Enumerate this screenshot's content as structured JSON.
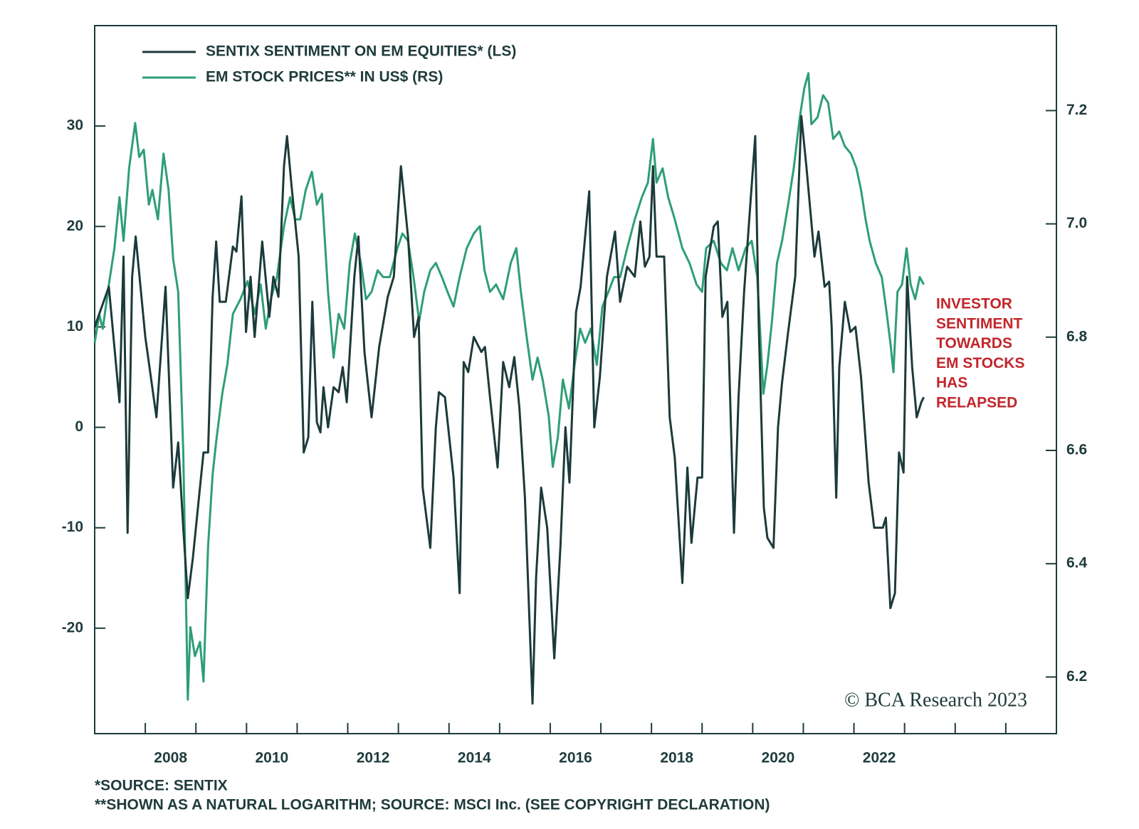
{
  "chart_data": {
    "type": "line",
    "legend": "top-left",
    "xlim": [
      2007,
      2026
    ],
    "xticks": [
      2008,
      2010,
      2012,
      2014,
      2016,
      2018,
      2020,
      2022
    ],
    "xminorticks": [
      2009,
      2011,
      2013,
      2015,
      2017,
      2019,
      2021,
      2023,
      2024,
      2025
    ],
    "ylim": [
      -30.5,
      40
    ],
    "yticks": [
      30,
      20,
      10,
      0,
      -10,
      -20
    ],
    "y2lim": [
      6.1,
      7.35
    ],
    "y2ticks": [
      7.2,
      {
        "value": 7,
        "label": "7.0"
      },
      6.8,
      6.6,
      6.4,
      6.2
    ],
    "series": [
      {
        "name": "SENTIX SENTIMENT ON EM EQUITIES* (LS)",
        "color": "#1c3a3a",
        "x": [
          2007.0,
          2007.28,
          2007.49,
          2007.57,
          2007.65,
          2007.74,
          2007.81,
          2008.0,
          2008.22,
          2008.4,
          2008.55,
          2008.65,
          2008.75,
          2008.84,
          2008.94,
          2009.15,
          2009.24,
          2009.33,
          2009.4,
          2009.47,
          2009.59,
          2009.73,
          2009.8,
          2009.9,
          2009.99,
          2010.08,
          2010.16,
          2010.31,
          2010.45,
          2010.53,
          2010.63,
          2010.74,
          2010.8,
          2010.89,
          2011.03,
          2011.13,
          2011.22,
          2011.3,
          2011.39,
          2011.46,
          2011.52,
          2011.61,
          2011.72,
          2011.82,
          2011.9,
          2011.98,
          2012.13,
          2012.21,
          2012.33,
          2012.47,
          2012.62,
          2012.79,
          2012.91,
          2013.05,
          2013.19,
          2013.31,
          2013.4,
          2013.48,
          2013.63,
          2013.74,
          2013.8,
          2013.92,
          2014.09,
          2014.21,
          2014.29,
          2014.38,
          2014.49,
          2014.64,
          2014.71,
          2014.81,
          2014.96,
          2015.07,
          2015.19,
          2015.29,
          2015.39,
          2015.5,
          2015.65,
          2015.72,
          2015.82,
          2015.94,
          2016.08,
          2016.2,
          2016.3,
          2016.38,
          2016.51,
          2016.6,
          2016.77,
          2016.87,
          2016.98,
          2017.12,
          2017.28,
          2017.38,
          2017.52,
          2017.67,
          2017.78,
          2017.87,
          2017.96,
          2018.03,
          2018.1,
          2018.25,
          2018.36,
          2018.46,
          2018.61,
          2018.71,
          2018.79,
          2018.91,
          2019.0,
          2019.07,
          2019.23,
          2019.31,
          2019.4,
          2019.5,
          2019.63,
          2019.72,
          2019.83,
          2019.95,
          2020.05,
          2020.12,
          2020.22,
          2020.29,
          2020.41,
          2020.5,
          2020.58,
          2020.7,
          2020.84,
          2020.96,
          2021.06,
          2021.22,
          2021.3,
          2021.42,
          2021.51,
          2021.56,
          2021.65,
          2021.71,
          2021.82,
          2021.93,
          2022.03,
          2022.14,
          2022.29,
          2022.4,
          2022.57,
          2022.63,
          2022.72,
          2022.81,
          2022.89,
          2022.98,
          2023.05,
          2023.15,
          2023.24,
          2023.33,
          2023.38
        ],
        "values": [
          10,
          14,
          2.5,
          17,
          -10.5,
          15,
          19,
          9,
          1,
          14,
          -6,
          -1.5,
          -10,
          -17,
          -13,
          -2.5,
          -2.5,
          13,
          18.5,
          12.5,
          12.5,
          18,
          17.5,
          23,
          9.5,
          15,
          9,
          18.5,
          11,
          15,
          13,
          26,
          29,
          24,
          17,
          -2.5,
          -1,
          12.5,
          0.5,
          -0.5,
          4,
          0,
          4,
          3.5,
          6,
          2.5,
          15,
          19,
          7.5,
          1,
          8,
          13,
          15,
          26,
          19,
          9,
          11,
          -6,
          -12,
          0,
          3.5,
          3,
          -5,
          -16.5,
          6.5,
          5.5,
          9,
          7.5,
          8,
          3,
          -4,
          6.5,
          4,
          7,
          2,
          -7,
          -27.5,
          -15,
          -6,
          -10,
          -23,
          -12,
          0,
          -5.5,
          11.5,
          14,
          23.5,
          0,
          5,
          15,
          19.5,
          12.5,
          16,
          15,
          20.5,
          16,
          17,
          26,
          17,
          17,
          1,
          -3,
          -15.5,
          -4,
          -11.5,
          -5,
          -5,
          15,
          20,
          20.5,
          11,
          12.5,
          -10.5,
          3,
          13.5,
          22,
          29,
          10,
          -8,
          -11,
          -12,
          0,
          4.5,
          9.5,
          15,
          31,
          26,
          17,
          19.5,
          14,
          14.5,
          10,
          -7,
          6,
          12.5,
          9.5,
          10,
          5,
          -5.5,
          -10,
          -10,
          -9,
          -18,
          -16.5,
          -2.5,
          -4.5,
          15,
          6,
          1,
          2.5,
          3
        ]
      },
      {
        "name": "EM STOCK PRICES** IN US$ (RS)",
        "color": "#2e9e76",
        "axis": "y2",
        "x": [
          2007.0,
          2007.09,
          2007.16,
          2007.28,
          2007.39,
          2007.49,
          2007.57,
          2007.68,
          2007.8,
          2007.88,
          2007.97,
          2008.07,
          2008.14,
          2008.25,
          2008.36,
          2008.46,
          2008.55,
          2008.65,
          2008.75,
          2008.84,
          2008.89,
          2008.98,
          2009.08,
          2009.15,
          2009.24,
          2009.33,
          2009.41,
          2009.52,
          2009.62,
          2009.73,
          2009.88,
          2010.02,
          2010.16,
          2010.28,
          2010.38,
          2010.48,
          2010.6,
          2010.74,
          2010.86,
          2010.96,
          2011.06,
          2011.17,
          2011.29,
          2011.39,
          2011.49,
          2011.61,
          2011.72,
          2011.82,
          2011.93,
          2012.04,
          2012.14,
          2012.26,
          2012.36,
          2012.47,
          2012.59,
          2012.7,
          2012.83,
          2012.98,
          2013.08,
          2013.19,
          2013.3,
          2013.41,
          2013.51,
          2013.63,
          2013.74,
          2013.86,
          2013.97,
          2014.09,
          2014.21,
          2014.35,
          2014.49,
          2014.61,
          2014.7,
          2014.81,
          2014.93,
          2015.07,
          2015.22,
          2015.33,
          2015.42,
          2015.53,
          2015.65,
          2015.75,
          2015.85,
          2015.97,
          2016.05,
          2016.15,
          2016.25,
          2016.37,
          2016.48,
          2016.59,
          2016.69,
          2016.8,
          2016.92,
          2017.03,
          2017.15,
          2017.26,
          2017.38,
          2017.52,
          2017.67,
          2017.81,
          2017.93,
          2018.03,
          2018.1,
          2018.22,
          2018.33,
          2018.46,
          2018.61,
          2018.75,
          2018.89,
          2019.0,
          2019.08,
          2019.23,
          2019.37,
          2019.49,
          2019.6,
          2019.72,
          2019.86,
          2019.98,
          2020.09,
          2020.21,
          2020.29,
          2020.38,
          2020.48,
          2020.58,
          2020.7,
          2020.81,
          2020.93,
          2021.02,
          2021.1,
          2021.16,
          2021.28,
          2021.39,
          2021.49,
          2021.59,
          2021.71,
          2021.82,
          2021.94,
          2022.05,
          2022.14,
          2022.23,
          2022.31,
          2022.43,
          2022.55,
          2022.63,
          2022.72,
          2022.78,
          2022.86,
          2022.95,
          2023.04,
          2023.12,
          2023.21,
          2023.3,
          2023.38
        ],
        "values": [
          6.79,
          6.84,
          6.815,
          6.893,
          6.957,
          7.047,
          6.97,
          7.098,
          7.178,
          7.118,
          7.131,
          7.034,
          7.06,
          7.008,
          7.124,
          7.06,
          6.938,
          6.88,
          6.597,
          6.16,
          6.288,
          6.237,
          6.262,
          6.192,
          6.43,
          6.558,
          6.623,
          6.7,
          6.751,
          6.841,
          6.867,
          6.899,
          6.841,
          6.893,
          6.815,
          6.867,
          6.906,
          6.996,
          7.047,
          7.008,
          7.008,
          7.06,
          7.092,
          7.034,
          7.053,
          6.88,
          6.764,
          6.841,
          6.815,
          6.931,
          6.983,
          6.931,
          6.867,
          6.88,
          6.918,
          6.906,
          6.906,
          6.957,
          6.983,
          6.97,
          6.906,
          6.828,
          6.88,
          6.918,
          6.931,
          6.906,
          6.88,
          6.854,
          6.906,
          6.957,
          6.983,
          6.996,
          6.918,
          6.88,
          6.893,
          6.867,
          6.931,
          6.957,
          6.88,
          6.803,
          6.725,
          6.764,
          6.725,
          6.661,
          6.571,
          6.623,
          6.725,
          6.674,
          6.751,
          6.815,
          6.79,
          6.815,
          6.751,
          6.854,
          6.88,
          6.906,
          6.906,
          6.957,
          7.008,
          7.047,
          7.073,
          7.15,
          7.073,
          7.098,
          7.047,
          7.008,
          6.957,
          6.931,
          6.893,
          6.88,
          6.957,
          6.97,
          6.931,
          6.918,
          6.957,
          6.918,
          6.957,
          6.97,
          6.906,
          6.7,
          6.751,
          6.828,
          6.931,
          6.97,
          7.034,
          7.098,
          7.188,
          7.24,
          7.266,
          7.176,
          7.188,
          7.227,
          7.214,
          7.15,
          7.163,
          7.137,
          7.124,
          7.098,
          7.06,
          7.008,
          6.97,
          6.931,
          6.906,
          6.854,
          6.79,
          6.738,
          6.88,
          6.893,
          6.957,
          6.893,
          6.867,
          6.906,
          6.893
        ]
      }
    ],
    "annotation": [
      "INVESTOR",
      "SENTIMENT",
      "TOWARDS",
      "EM STOCKS",
      "HAS",
      "RELAPSED"
    ],
    "annotation_color": "#c1262c",
    "copyright": "© BCA Research 2023",
    "footnotes": [
      "*SOURCE: SENTIX",
      "**SHOWN AS A NATURAL LOGARITHM; SOURCE: MSCI Inc. (SEE COPYRIGHT DECLARATION)"
    ]
  }
}
